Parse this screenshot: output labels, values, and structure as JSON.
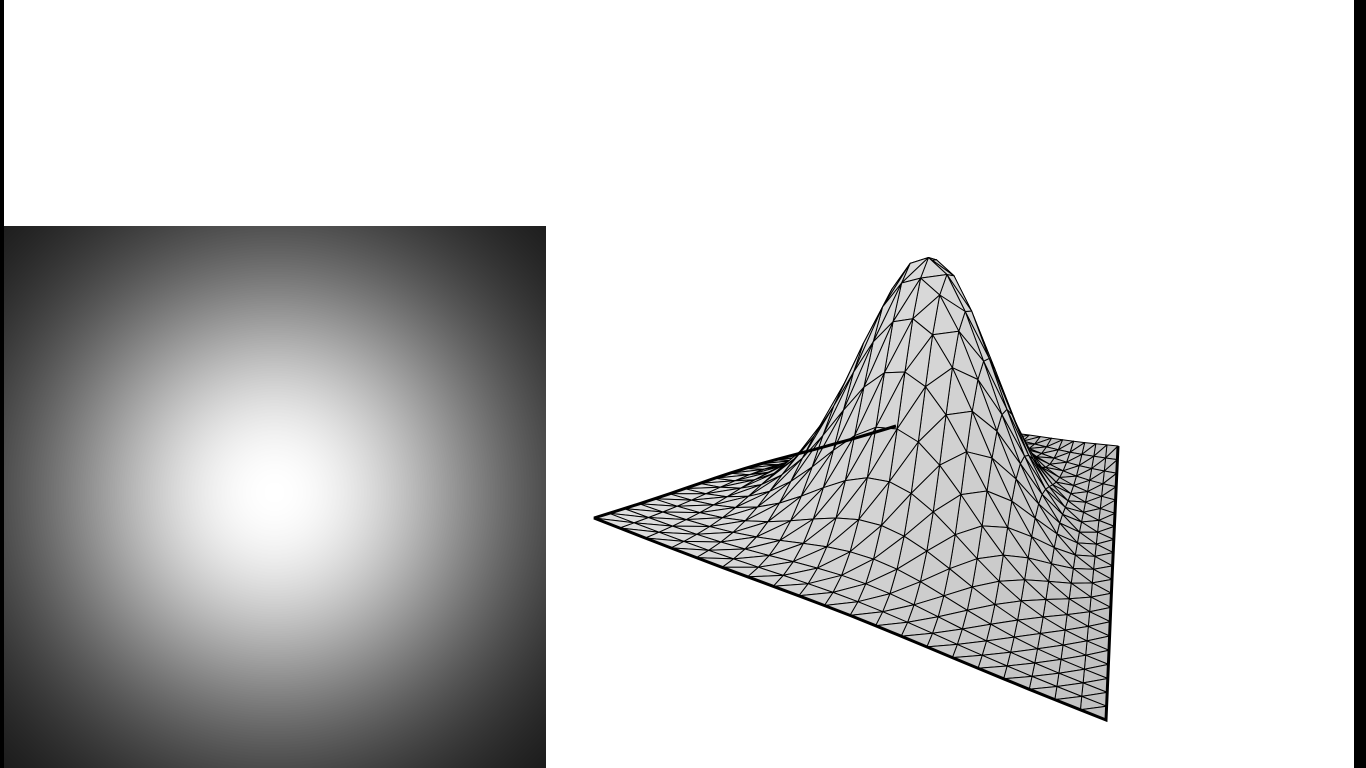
{
  "figure": {
    "left_view": {
      "kind": "intensity image",
      "colormap": "grayscale",
      "peak": "center",
      "background_color": "#0a0a0a",
      "peak_color": "#ffffff"
    },
    "right_view": {
      "kind": "triangulated surface wireframe",
      "surface": "gaussian bump",
      "face_color": "#d9d9d9",
      "edge_color": "#000000",
      "grid_divisions": 20
    }
  }
}
